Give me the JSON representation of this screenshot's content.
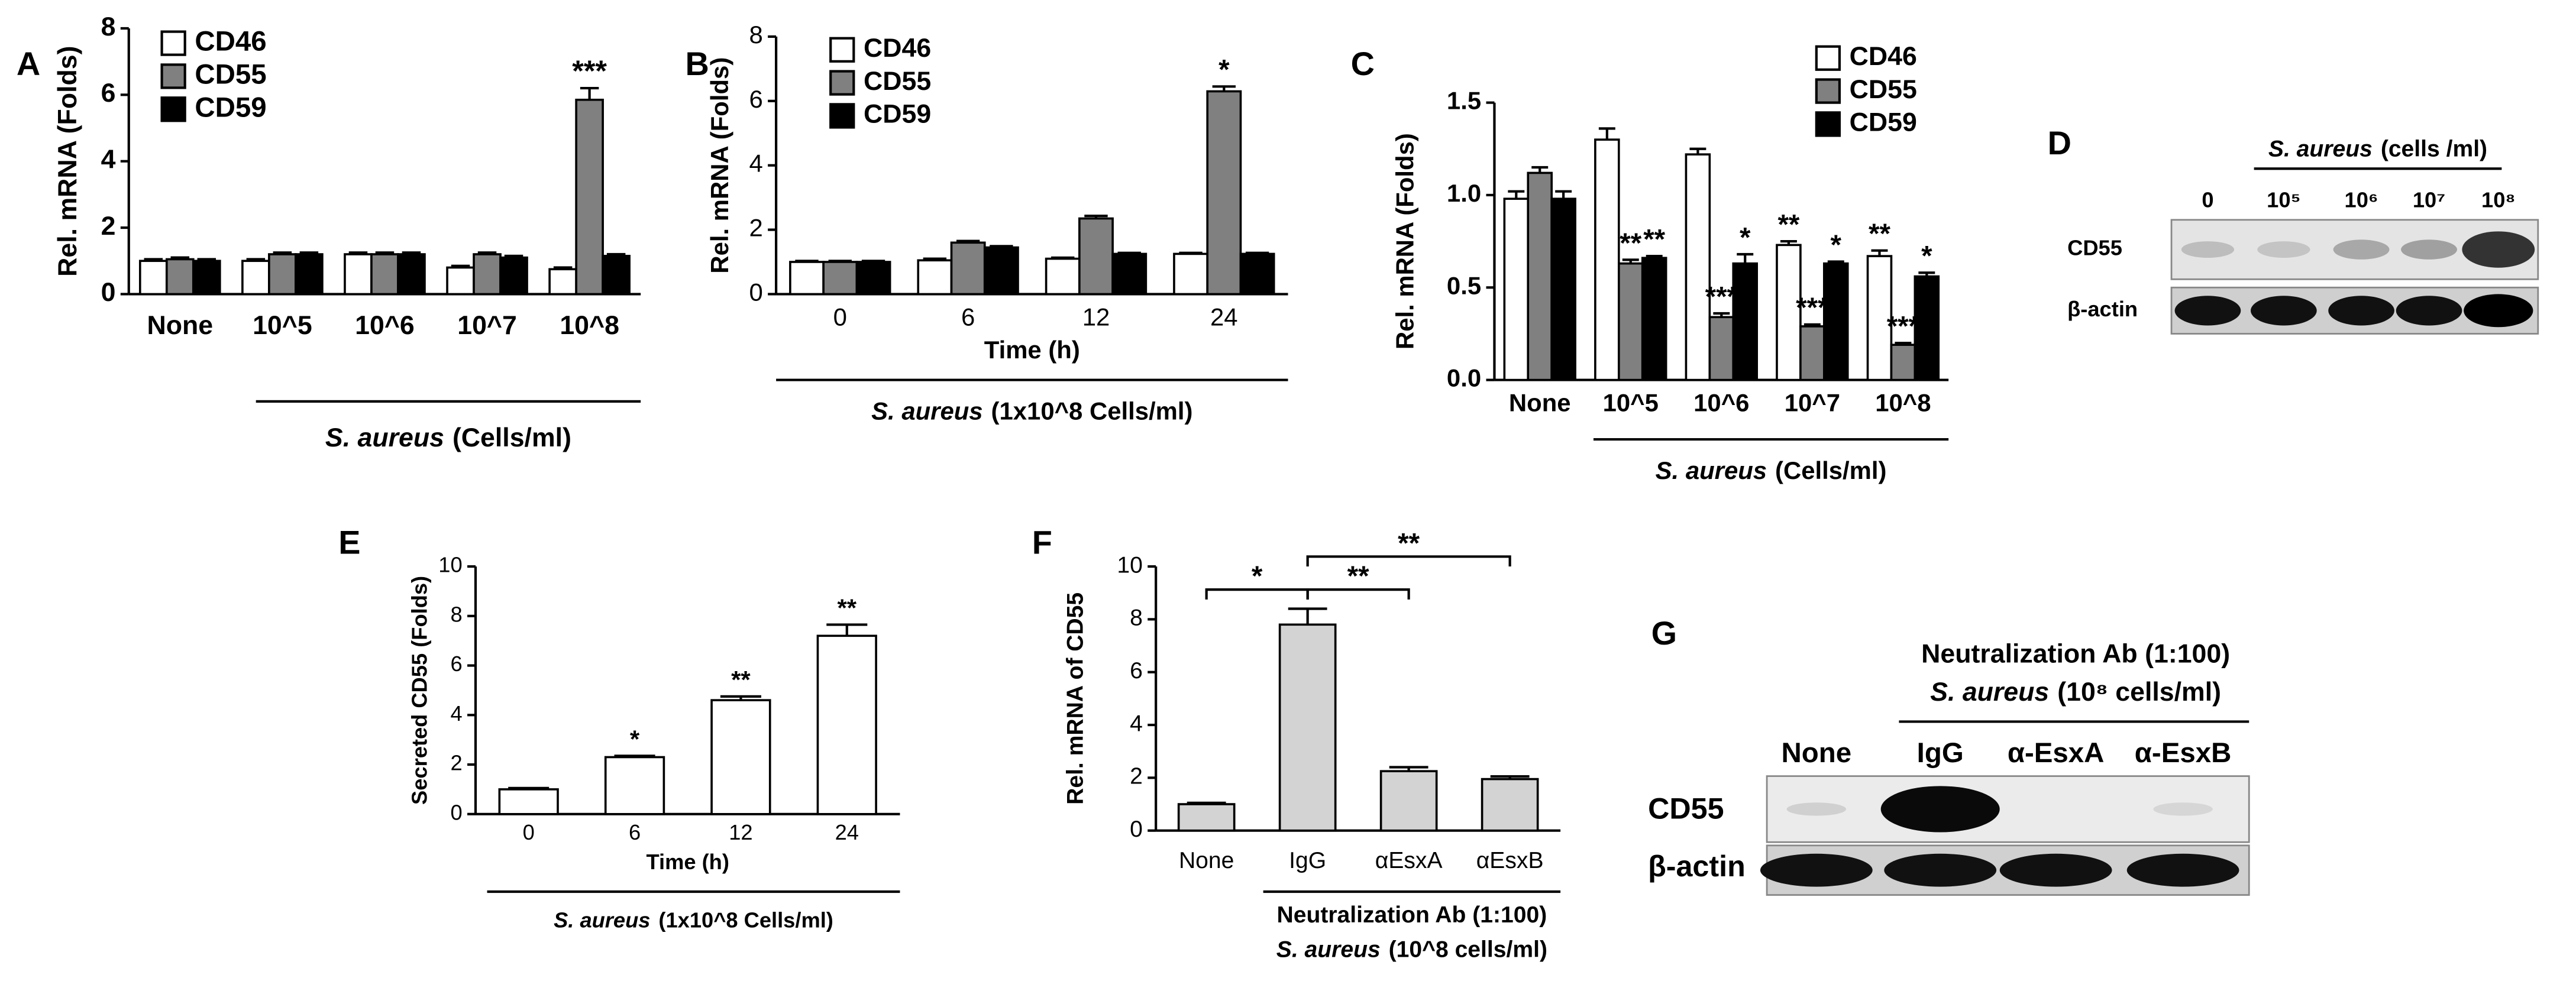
{
  "chart_data": [
    {
      "type": "bar",
      "panel": "A",
      "ylabel": "Rel. mRNA (Folds)",
      "group_label_italic": "S. aureus",
      "group_label": "(Cells/ml)",
      "categories": [
        "None",
        "10^5",
        "10^6",
        "10^7",
        "10^8"
      ],
      "ylim": [
        0,
        8
      ],
      "yticks": [
        0,
        2,
        4,
        6,
        8
      ],
      "series": [
        {
          "name": "CD46",
          "color": "#ffffff",
          "values": [
            1,
            1,
            1.2,
            0.8,
            0.75
          ],
          "errors": [
            0.05,
            0.05,
            0.05,
            0.05,
            0.05
          ],
          "annotations": [
            null,
            null,
            null,
            null,
            null
          ]
        },
        {
          "name": "CD55",
          "color": "#808080",
          "values": [
            1.05,
            1.2,
            1.2,
            1.2,
            5.85
          ],
          "errors": [
            0.05,
            0.05,
            0.05,
            0.05,
            0.35
          ],
          "annotations": [
            null,
            null,
            null,
            null,
            "***"
          ]
        },
        {
          "name": "CD59",
          "color": "#000000",
          "values": [
            1,
            1.2,
            1.2,
            1.1,
            1.15
          ],
          "errors": [
            0.05,
            0.05,
            0.05,
            0.05,
            0.05
          ],
          "annotations": [
            null,
            null,
            null,
            null,
            null
          ]
        }
      ]
    },
    {
      "type": "bar",
      "panel": "B",
      "ylabel": "Rel. mRNA (Folds)",
      "xlabel": "Time (h)",
      "group_label_italic": "S. aureus",
      "group_label": "(1x10^8 Cells/ml)",
      "categories": [
        "0",
        "6",
        "12",
        "24"
      ],
      "ylim": [
        0,
        8
      ],
      "yticks": [
        0,
        2,
        4,
        6,
        8
      ],
      "series": [
        {
          "name": "CD46",
          "color": "#ffffff",
          "values": [
            1,
            1.05,
            1.1,
            1.25
          ],
          "errors": [
            0.03,
            0.05,
            0.03,
            0.03
          ],
          "annotations": [
            null,
            null,
            null,
            null
          ]
        },
        {
          "name": "CD55",
          "color": "#808080",
          "values": [
            1,
            1.6,
            2.35,
            6.3
          ],
          "errors": [
            0.03,
            0.05,
            0.08,
            0.15
          ],
          "annotations": [
            null,
            null,
            null,
            "*"
          ]
        },
        {
          "name": "CD59",
          "color": "#000000",
          "values": [
            1,
            1.45,
            1.25,
            1.25
          ],
          "errors": [
            0.03,
            0.04,
            0.03,
            0.03
          ],
          "annotations": [
            null,
            null,
            null,
            null
          ]
        }
      ]
    },
    {
      "type": "bar",
      "panel": "C",
      "ylabel": "Rel. mRNA (Folds)",
      "group_label_italic": "S. aureus",
      "group_label": "(Cells/ml)",
      "categories": [
        "None",
        "10^5",
        "10^6",
        "10^7",
        "10^8"
      ],
      "ylim": [
        0,
        1.5
      ],
      "yticks": [
        {
          "value": 0,
          "label": "0.0"
        },
        {
          "value": 0.5,
          "label": "0.5"
        },
        {
          "value": 1,
          "label": "1.0"
        },
        {
          "value": 1.5,
          "label": "1.5"
        }
      ],
      "series": [
        {
          "name": "CD46",
          "color": "#ffffff",
          "values": [
            0.98,
            1.3,
            1.22,
            0.73,
            0.67
          ],
          "errors": [
            0.04,
            0.06,
            0.03,
            0.02,
            0.03
          ],
          "annotations": [
            null,
            null,
            null,
            "**",
            "**"
          ]
        },
        {
          "name": "CD55",
          "color": "#808080",
          "values": [
            1.12,
            0.63,
            0.34,
            0.29,
            0.19
          ],
          "errors": [
            0.03,
            0.02,
            0.02,
            0.01,
            0.01
          ],
          "annotations": [
            null,
            "**",
            "***",
            "***",
            "***"
          ]
        },
        {
          "name": "CD59",
          "color": "#000000",
          "values": [
            0.98,
            0.66,
            0.63,
            0.63,
            0.56
          ],
          "errors": [
            0.04,
            0.01,
            0.05,
            0.01,
            0.02
          ],
          "annotations": [
            null,
            "**",
            "*",
            "*",
            "*"
          ]
        }
      ]
    },
    {
      "type": "bar",
      "panel": "E",
      "ylabel": "Secreted CD55 (Folds)",
      "xlabel": "Time (h)",
      "group_label_italic": "S. aureus",
      "group_label": "(1x10^8 Cells/ml)",
      "categories": [
        "0",
        "6",
        "12",
        "24"
      ],
      "ylim": [
        0,
        10
      ],
      "yticks": [
        0,
        2,
        4,
        6,
        8,
        10
      ],
      "series": [
        {
          "color": "#ffffff",
          "values": [
            1,
            2.3,
            4.6,
            7.2
          ],
          "errors": [
            0.05,
            0.05,
            0.15,
            0.45
          ],
          "annotations": [
            null,
            "*",
            "**",
            "**"
          ]
        }
      ]
    },
    {
      "type": "bar",
      "panel": "F",
      "ylabel": "Rel. mRNA of CD55",
      "group_label": "Neutralization Ab (1:100)",
      "group_label2_italic": "S. aureus",
      "group_label2": "(10^8 cells/ml)",
      "categories": [
        "None",
        "IgG",
        "αEsxA",
        "αEsxB"
      ],
      "ylim": [
        0,
        10
      ],
      "yticks": [
        0,
        2,
        4,
        6,
        8,
        10
      ],
      "series": [
        {
          "color": "#d3d3d3",
          "values": [
            1,
            7.8,
            2.25,
            1.95
          ],
          "errors": [
            0.05,
            0.6,
            0.15,
            0.1
          ],
          "annotations": [
            null,
            null,
            null,
            null
          ]
        }
      ],
      "comparisons": [
        {
          "pair": [
            0,
            1
          ],
          "label": "*"
        },
        {
          "pair": [
            1,
            2
          ],
          "label": "**"
        },
        {
          "pair": [
            1,
            3
          ],
          "label": "**"
        }
      ]
    }
  ],
  "blots": [
    {
      "panel": "D",
      "header_italic": "S. aureus",
      "header": "(cells /ml)",
      "lanes": [
        "0",
        "10⁵",
        "10⁶",
        "10⁷",
        "10⁸"
      ],
      "rows": [
        "CD55",
        "β-actin"
      ]
    },
    {
      "panel": "G",
      "header": "Neutralization Ab (1:100)",
      "header2_italic": "S. aureus",
      "header2": "(10⁸ cells/ml)",
      "lanes": [
        "None",
        "IgG",
        "α-EsxA",
        "α-EsxB"
      ],
      "rows": [
        "CD55",
        "β-actin"
      ]
    }
  ]
}
